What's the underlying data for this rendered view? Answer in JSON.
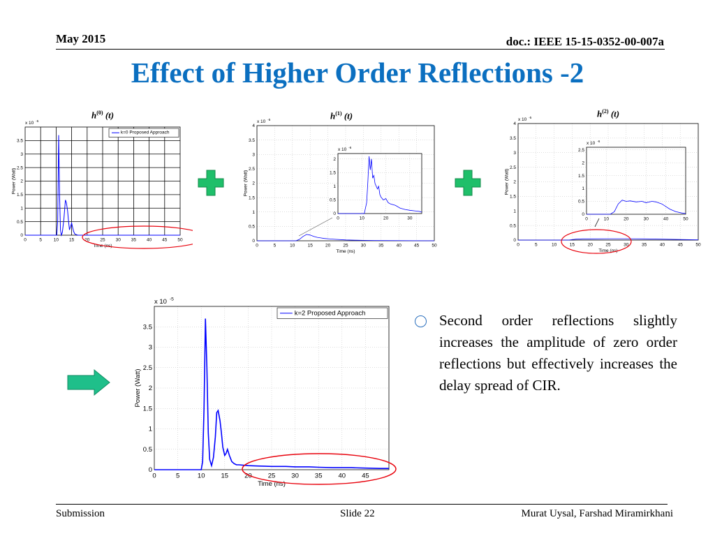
{
  "header": {
    "date": "May 2015",
    "doc": "doc.: IEEE 15-15-0352-00-007a"
  },
  "title": "Effect of Higher Order Reflections -2",
  "formulas": {
    "h0": "(0)",
    "h1": "(1)",
    "h2": "(2)",
    "h_letter": "h",
    "t_arg": "(t)"
  },
  "bullet": "Second order reflections slightly increases the amplitude of zero order reflections but effectively increases the delay spread of CIR.",
  "footer": {
    "left": "Submission",
    "center": "Slide 22",
    "right": "Murat Uysal, Farshad Miramirkhani"
  },
  "colors": {
    "title": "#0b6fc0",
    "line": "#0000ff",
    "highlight": "#e8000b",
    "plus": "#1fbf6a",
    "arrow": "#1fbf8a"
  },
  "icons": {
    "plus1": "plus-icon",
    "plus2": "plus-icon",
    "arrow": "right-arrow-icon"
  },
  "chart_data": [
    {
      "id": "k0",
      "type": "line",
      "xlabel": "Time (ns)",
      "ylabel": "Power (Watt)",
      "exponent": "x 10-5",
      "xlim": [
        0,
        50
      ],
      "ylim": [
        0,
        4
      ],
      "xticks": [
        0,
        5,
        10,
        15,
        20,
        25,
        30,
        35,
        40,
        45,
        50
      ],
      "yticks": [
        0,
        0.5,
        1,
        1.5,
        2,
        2.5,
        3,
        3.5
      ],
      "grid": "solid",
      "legend": "k=0 Proposed Approach",
      "legend_position": "top-right",
      "series": [
        {
          "name": "k=0 Proposed Approach",
          "x": [
            0,
            10.2,
            10.5,
            10.8,
            11.1,
            11.4,
            11.7,
            12,
            12.5,
            13,
            13.3,
            13.7,
            14,
            14.3,
            14.6,
            15,
            15.3,
            15.6,
            16,
            16.5,
            17,
            18,
            50
          ],
          "y": [
            0,
            0,
            0.5,
            3.7,
            1.5,
            0.2,
            0,
            0.1,
            0.6,
            1.3,
            1.2,
            0.9,
            0.5,
            0.2,
            0.3,
            0.45,
            0.3,
            0.15,
            0.05,
            0.02,
            0,
            0,
            0
          ]
        }
      ]
    },
    {
      "id": "k1",
      "type": "line",
      "xlabel": "Time (ns)",
      "ylabel": "Power (Watt)",
      "exponent": "x 10-5",
      "xlim": [
        0,
        50
      ],
      "ylim": [
        0,
        4
      ],
      "xticks": [
        0,
        5,
        10,
        15,
        20,
        25,
        30,
        35,
        40,
        45,
        50
      ],
      "yticks": [
        0,
        0.5,
        1,
        1.5,
        2,
        2.5,
        3,
        3.5,
        4
      ],
      "grid": "dotted",
      "series": [
        {
          "name": "",
          "x": [
            0,
            11,
            12,
            13,
            14,
            15,
            16,
            17,
            18,
            19,
            20,
            22,
            25,
            28,
            30,
            33,
            50
          ],
          "y": [
            0,
            0,
            0.05,
            0.15,
            0.22,
            0.2,
            0.15,
            0.12,
            0.1,
            0.08,
            0.07,
            0.05,
            0.03,
            0.02,
            0.015,
            0.01,
            0
          ]
        }
      ],
      "inset": {
        "exponent": "x 10-6",
        "xlim": [
          0,
          35
        ],
        "ylim": [
          0,
          2.2
        ],
        "xticks": [
          0,
          10,
          20,
          30
        ],
        "yticks": [
          0,
          0.5,
          1,
          1.5,
          2
        ],
        "series": [
          {
            "name": "",
            "x": [
              0,
              11,
              12,
              12.5,
              13,
              13.5,
              14,
              14.5,
              15,
              15.5,
              16,
              16.5,
              17,
              17.5,
              18,
              19,
              20,
              21,
              22,
              24,
              26,
              28,
              30,
              32,
              34,
              35
            ],
            "y": [
              0,
              0,
              0.4,
              1.2,
              2.1,
              1.6,
              2.0,
              1.3,
              1.4,
              1.1,
              1.0,
              0.9,
              1.0,
              0.7,
              0.6,
              0.5,
              0.55,
              0.4,
              0.35,
              0.3,
              0.2,
              0.15,
              0.12,
              0.1,
              0.08,
              0.05
            ]
          }
        ]
      }
    },
    {
      "id": "k2",
      "type": "line",
      "xlabel": "Time (ns)",
      "ylabel": "Power (Watt)",
      "exponent": "x 10-5",
      "xlim": [
        0,
        50
      ],
      "ylim": [
        0,
        4
      ],
      "xticks": [
        0,
        5,
        10,
        15,
        20,
        25,
        30,
        35,
        40,
        45,
        50
      ],
      "yticks": [
        0,
        0.5,
        1,
        1.5,
        2,
        2.5,
        3,
        3.5,
        4
      ],
      "grid": "dotted",
      "series": [
        {
          "name": "",
          "x": [
            0,
            14,
            16,
            18,
            20,
            25,
            30,
            35,
            40,
            45,
            50
          ],
          "y": [
            0,
            0,
            0.03,
            0.04,
            0.04,
            0.045,
            0.045,
            0.04,
            0.03,
            0.02,
            0.01
          ]
        }
      ],
      "inset": {
        "exponent": "x 10-6",
        "xlim": [
          0,
          50
        ],
        "ylim": [
          0,
          2.6
        ],
        "xticks": [
          0,
          10,
          20,
          30,
          40,
          50
        ],
        "yticks": [
          0,
          0.5,
          1,
          1.5,
          2,
          2.5
        ],
        "series": [
          {
            "name": "",
            "x": [
              0,
              12,
              14,
              16,
              18,
              20,
              22,
              25,
              28,
              30,
              33,
              35,
              38,
              40,
              42,
              45,
              48,
              50
            ],
            "y": [
              0,
              0,
              0.1,
              0.4,
              0.55,
              0.5,
              0.52,
              0.48,
              0.5,
              0.45,
              0.5,
              0.48,
              0.4,
              0.3,
              0.2,
              0.1,
              0.05,
              0.03
            ]
          }
        ]
      }
    },
    {
      "id": "k2big",
      "type": "line",
      "xlabel": "Time (ns)",
      "ylabel": "Power (Watt)",
      "exponent": "x 10-5",
      "xlim": [
        0,
        50
      ],
      "ylim": [
        0,
        4
      ],
      "xticks": [
        0,
        5,
        10,
        15,
        20,
        25,
        30,
        35,
        40,
        45
      ],
      "yticks": [
        0,
        0.5,
        1,
        1.5,
        2,
        2.5,
        3,
        3.5
      ],
      "grid": "dotted",
      "legend": "k=2 Proposed Approach",
      "legend_position": "top-right",
      "series": [
        {
          "name": "k=2 Proposed Approach",
          "x": [
            0,
            10,
            10.3,
            10.6,
            10.9,
            11.2,
            11.5,
            11.8,
            12.2,
            12.6,
            13,
            13.3,
            13.6,
            14,
            14.3,
            14.6,
            15,
            15.3,
            15.6,
            16,
            16.5,
            17,
            17.5,
            18,
            19,
            20,
            22,
            25,
            28,
            30,
            33,
            35,
            38,
            40,
            42,
            45,
            48,
            50
          ],
          "y": [
            0,
            0,
            0.2,
            1.5,
            3.7,
            2.5,
            0.9,
            0.25,
            0.1,
            0.3,
            0.8,
            1.4,
            1.45,
            1.2,
            0.9,
            0.55,
            0.35,
            0.4,
            0.5,
            0.35,
            0.2,
            0.15,
            0.12,
            0.12,
            0.11,
            0.1,
            0.09,
            0.08,
            0.08,
            0.07,
            0.07,
            0.06,
            0.05,
            0.05,
            0.05,
            0.04,
            0.03,
            0.03
          ]
        }
      ]
    }
  ]
}
